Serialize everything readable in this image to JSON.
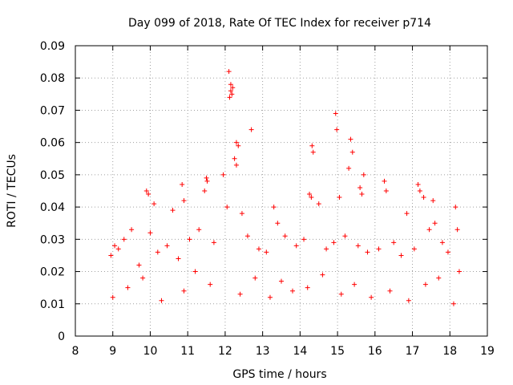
{
  "chart_data": {
    "type": "scatter",
    "title": "Day 099 of 2018, Rate Of TEC Index for receiver p714",
    "xlabel": "GPS time / hours",
    "ylabel": "ROTI / TECUs",
    "xlim": [
      8,
      19
    ],
    "ylim": [
      0,
      0.09
    ],
    "x_ticks": [
      8,
      9,
      10,
      11,
      12,
      13,
      14,
      15,
      16,
      17,
      18,
      19
    ],
    "y_ticks": [
      0,
      0.01,
      0.02,
      0.03,
      0.04,
      0.05,
      0.06,
      0.07,
      0.08,
      0.09
    ],
    "x_tick_labels": [
      "8",
      "9",
      "10",
      "11",
      "12",
      "13",
      "14",
      "15",
      "16",
      "17",
      "18",
      "19"
    ],
    "y_tick_labels": [
      "0",
      "0.01",
      "0.02",
      "0.03",
      "0.04",
      "0.05",
      "0.06",
      "0.07",
      "0.08",
      "0.09"
    ],
    "grid": true,
    "marker": "+",
    "color": "#ff0000",
    "series": [
      {
        "name": "ROTI",
        "x": [
          12.1,
          12.15,
          12.15,
          12.2,
          12.12,
          12.18,
          12.3,
          12.35,
          12.7,
          12.25,
          12.3,
          14.95,
          14.98,
          15.35,
          15.3,
          15.4,
          14.32,
          14.35,
          11.5,
          11.52,
          15.7,
          9.9,
          9.95,
          10.0,
          10.1,
          10.6,
          10.85,
          10.9,
          11.45,
          11.95,
          12.05,
          12.45,
          13.3,
          13.4,
          14.25,
          14.3,
          14.5,
          15.05,
          15.6,
          15.65,
          16.25,
          16.3,
          16.85,
          17.15,
          17.2,
          17.3,
          17.55,
          17.6,
          18.15,
          18.2,
          8.95,
          9.05,
          9.15,
          9.3,
          9.5,
          9.7,
          10.2,
          10.45,
          10.75,
          11.05,
          11.3,
          11.7,
          12.6,
          12.9,
          13.1,
          13.6,
          13.9,
          14.1,
          14.7,
          14.9,
          15.2,
          15.55,
          15.8,
          16.1,
          16.5,
          16.7,
          17.05,
          17.45,
          17.8,
          17.95,
          18.25,
          9.0,
          9.4,
          9.8,
          10.3,
          10.9,
          11.2,
          11.6,
          12.4,
          12.8,
          13.2,
          13.5,
          13.8,
          14.2,
          14.6,
          15.1,
          15.45,
          15.9,
          16.4,
          16.9,
          17.35,
          17.7,
          18.1
        ],
        "y": [
          0.082,
          0.078,
          0.076,
          0.077,
          0.074,
          0.075,
          0.06,
          0.059,
          0.064,
          0.055,
          0.053,
          0.069,
          0.064,
          0.061,
          0.052,
          0.057,
          0.059,
          0.057,
          0.049,
          0.048,
          0.05,
          0.045,
          0.044,
          0.032,
          0.041,
          0.039,
          0.047,
          0.042,
          0.045,
          0.05,
          0.04,
          0.038,
          0.04,
          0.035,
          0.044,
          0.043,
          0.041,
          0.043,
          0.046,
          0.044,
          0.048,
          0.045,
          0.038,
          0.047,
          0.045,
          0.043,
          0.042,
          0.035,
          0.04,
          0.033,
          0.025,
          0.028,
          0.027,
          0.03,
          0.033,
          0.022,
          0.026,
          0.028,
          0.024,
          0.03,
          0.033,
          0.029,
          0.031,
          0.027,
          0.026,
          0.031,
          0.028,
          0.03,
          0.027,
          0.029,
          0.031,
          0.028,
          0.026,
          0.027,
          0.029,
          0.025,
          0.027,
          0.033,
          0.029,
          0.026,
          0.02,
          0.012,
          0.015,
          0.018,
          0.011,
          0.014,
          0.02,
          0.016,
          0.013,
          0.018,
          0.012,
          0.017,
          0.014,
          0.015,
          0.019,
          0.013,
          0.016,
          0.012,
          0.014,
          0.011,
          0.016,
          0.018,
          0.01
        ]
      }
    ]
  }
}
